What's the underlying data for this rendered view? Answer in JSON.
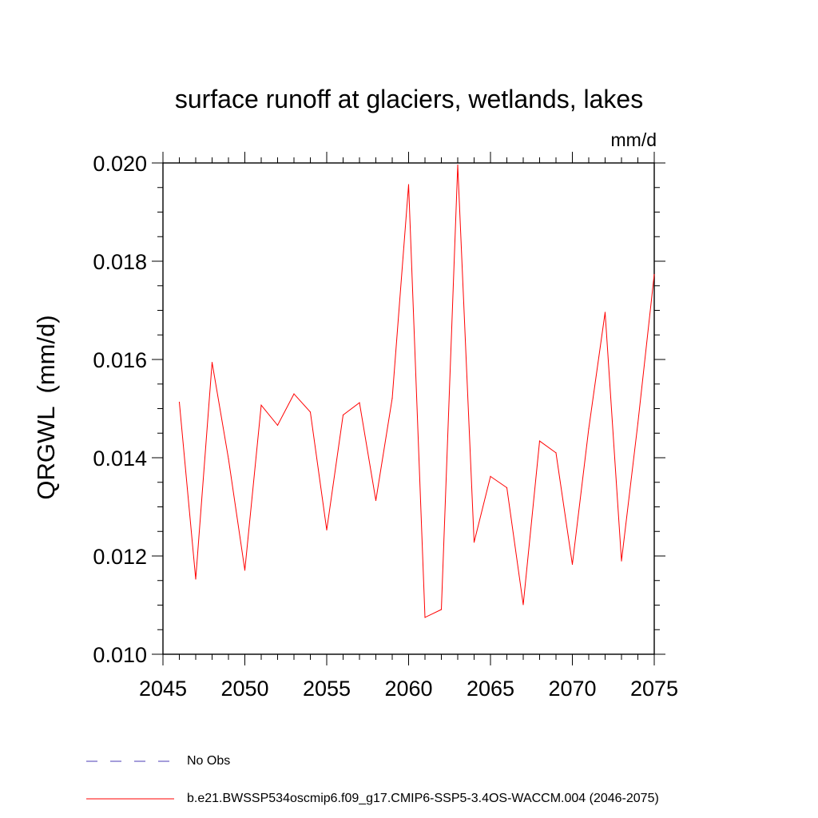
{
  "chart_data": {
    "type": "line",
    "title": "surface runoff at glaciers, wetlands, lakes",
    "units_label": "mm/d",
    "ylabel": "QRGWL  (mm/d)",
    "xlabel": "",
    "xlim": [
      2045,
      2075
    ],
    "ylim": [
      0.01,
      0.02
    ],
    "x_ticks": [
      "2045",
      "2050",
      "2055",
      "2060",
      "2065",
      "2070",
      "2075"
    ],
    "y_ticks": [
      "0.010",
      "0.012",
      "0.014",
      "0.016",
      "0.018",
      "0.020"
    ],
    "grid": false,
    "legend_position": "bottom",
    "series": [
      {
        "name": "b.e21.BWSSP534oscmip6.f09_g17.CMIP6-SSP5-3.4OS-WACCM.004 (2046-2075)",
        "color": "#ff0000",
        "style": "solid",
        "x": [
          2046,
          2047,
          2048,
          2049,
          2050,
          2051,
          2052,
          2053,
          2054,
          2055,
          2056,
          2057,
          2058,
          2059,
          2060,
          2061,
          2062,
          2063,
          2064,
          2065,
          2066,
          2067,
          2068,
          2069,
          2070,
          2071,
          2072,
          2073,
          2074,
          2075
        ],
        "values": [
          0.01513,
          0.01153,
          0.01594,
          0.01398,
          0.01171,
          0.01507,
          0.01466,
          0.0153,
          0.01493,
          0.01253,
          0.01487,
          0.01512,
          0.01313,
          0.01521,
          0.01956,
          0.01075,
          0.01091,
          0.01996,
          0.01228,
          0.01362,
          0.01339,
          0.01101,
          0.01434,
          0.0141,
          0.01183,
          0.01459,
          0.01696,
          0.0119,
          0.0147,
          0.01773
        ]
      }
    ],
    "legend": [
      {
        "label": "No Obs",
        "color": "#4b3bb5",
        "style": "dashed"
      },
      {
        "label": "b.e21.BWSSP534oscmip6.f09_g17.CMIP6-SSP5-3.4OS-WACCM.004 (2046-2075)",
        "color": "#ff0000",
        "style": "solid"
      }
    ]
  }
}
